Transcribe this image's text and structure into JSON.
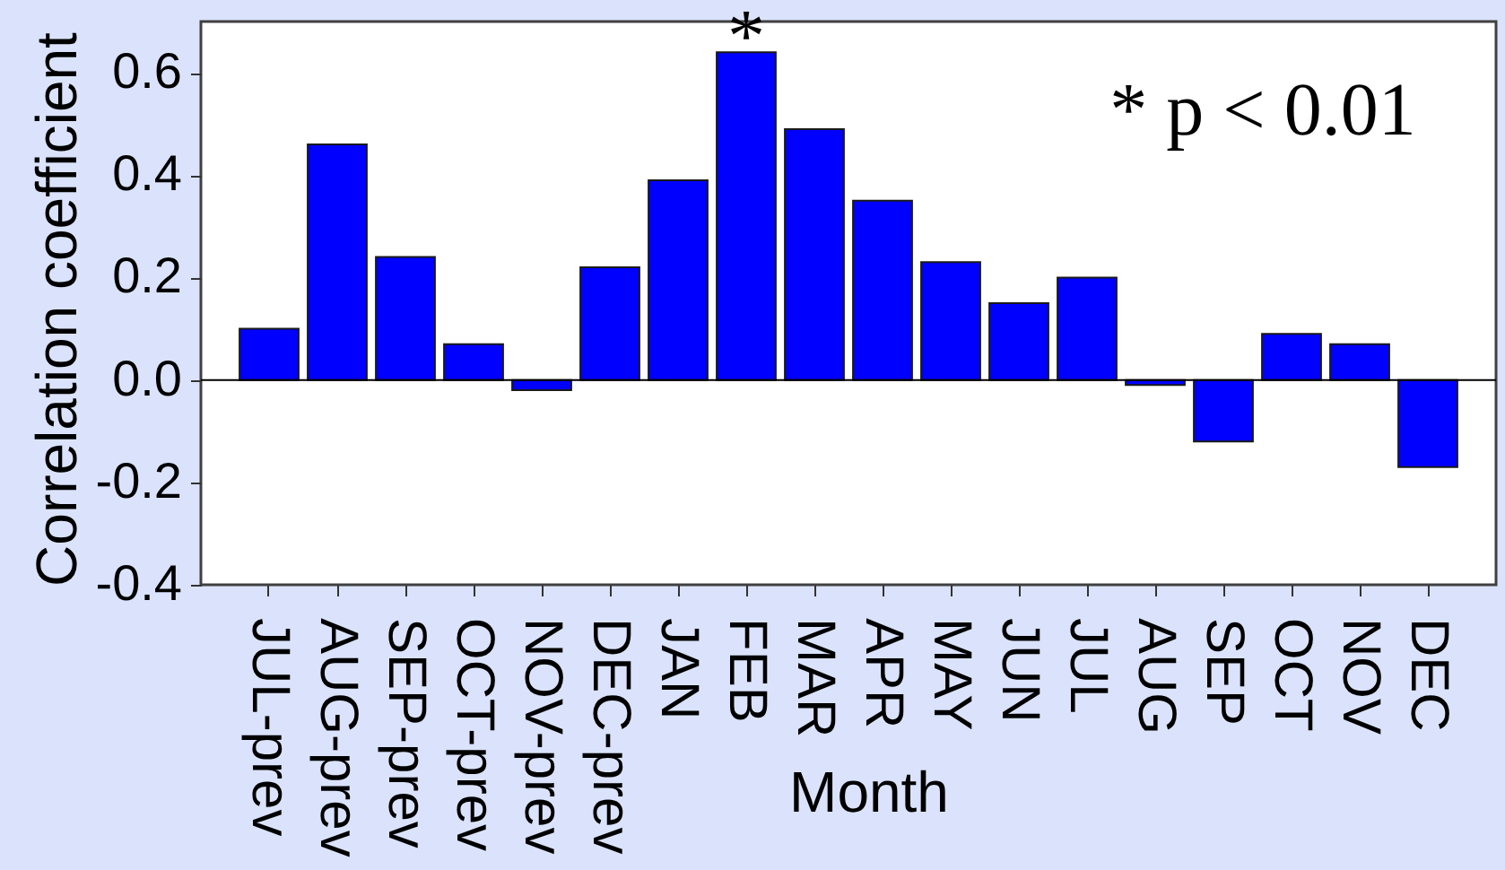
{
  "chart_data": {
    "type": "bar",
    "xlabel": "Month",
    "ylabel": "Correlation coefficient",
    "categories": [
      "JUL-prev",
      "AUG-prev",
      "SEP-prev",
      "OCT-prev",
      "NOV-prev",
      "DEC-prev",
      "JAN",
      "FEB",
      "MAR",
      "APR",
      "MAY",
      "JUN",
      "JUL",
      "AUG",
      "SEP",
      "OCT",
      "NOV",
      "DEC"
    ],
    "values": [
      0.1,
      0.46,
      0.24,
      0.07,
      -0.02,
      0.22,
      0.39,
      0.64,
      0.49,
      0.35,
      0.23,
      0.15,
      0.2,
      -0.01,
      -0.12,
      0.09,
      0.07,
      -0.17
    ],
    "color": "#0000ff",
    "ylim": [
      -0.4,
      0.7
    ],
    "yticks": [
      -0.4,
      -0.2,
      {
        "value": 0,
        "label": "0.0"
      },
      0.2,
      0.4,
      0.6
    ],
    "grid": false,
    "ref_lines": [
      {
        "axis": "y",
        "value": 0,
        "color": "#000000"
      }
    ],
    "annotations": [
      {
        "text": "*",
        "x": "FEB",
        "y": 0.64
      },
      "* p < 0.01"
    ]
  }
}
